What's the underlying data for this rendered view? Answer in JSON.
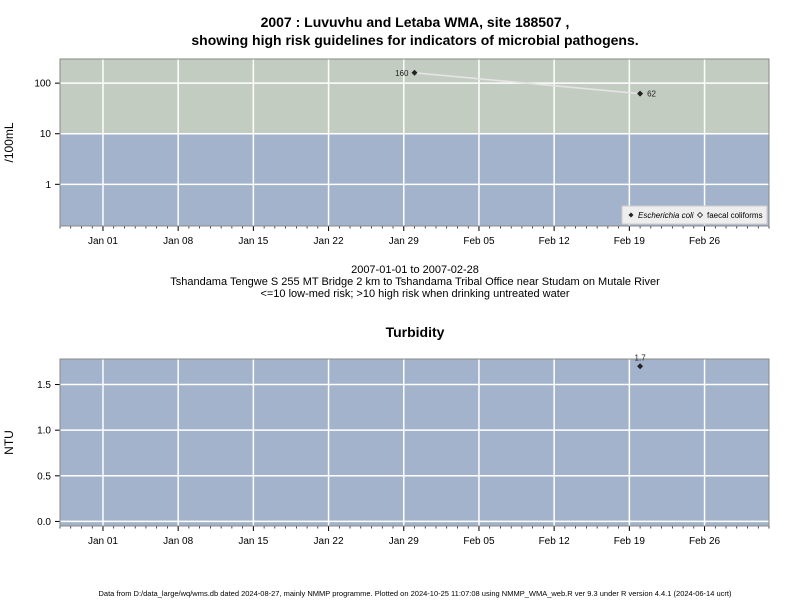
{
  "titles": {
    "main_line1": "2007 : Luvuvhu and Letaba WMA, site 188507 ,",
    "main_line2": "showing high risk guidelines for indicators of microbial pathogens.",
    "date_range": "2007-01-01 to 2007-02-28",
    "site_description": "Tshandama Tengwe S 255 MT Bridge 2 km to Tshandama Tribal Office near Studam on Mutale River",
    "risk_note": "<=10 low-med risk; >10 high risk when drinking untreated water",
    "turbidity_title": "Turbidity",
    "footer": "Data from D:/data_large/wq/wms.db dated 2024-08-27, mainly NMMP programme. Plotted on 2024-10-25 11:07:08 using NMMP_WMA_web.R ver 9.3 under R version 4.4.1 (2024-06-14 ucrt)"
  },
  "chart_data": [
    {
      "type": "line",
      "scale": "log",
      "ylabel": "/100mL",
      "xlim": [
        "2006-12-28",
        "2007-03-04"
      ],
      "ylim": [
        0.15,
        300
      ],
      "yticks": [
        1,
        10,
        100
      ],
      "ytick_labels": [
        "1",
        "10",
        "100"
      ],
      "xticks": [
        "2007-01-01",
        "2007-01-08",
        "2007-01-15",
        "2007-01-22",
        "2007-01-29",
        "2007-02-05",
        "2007-02-12",
        "2007-02-19",
        "2007-02-26"
      ],
      "xtick_labels": [
        "Jan 01",
        "Jan 08",
        "Jan 15",
        "Jan 22",
        "Jan 29",
        "Feb 05",
        "Feb 12",
        "Feb 19",
        "Feb 26"
      ],
      "guideline": {
        "threshold": 10,
        "below_color": "#a2b3cb",
        "above_color": "#c3ccc0"
      },
      "series": [
        {
          "name": "Escherichia coli",
          "marker": "filled-diamond",
          "color": "#222222",
          "line_color": "#e4e4e4",
          "x": [
            "2007-01-30",
            "2007-02-20"
          ],
          "y": [
            160,
            62
          ],
          "labels": [
            "160",
            "62"
          ]
        }
      ],
      "legend": {
        "position": "bottom-right",
        "entries": [
          "Escherichia coli",
          "faecal coliforms"
        ],
        "markers": [
          "filled-diamond",
          "open-diamond"
        ]
      },
      "grid": true
    },
    {
      "type": "scatter",
      "scale": "linear",
      "title": "Turbidity",
      "ylabel": "NTU",
      "xlim": [
        "2006-12-28",
        "2007-03-04"
      ],
      "ylim": [
        -0.05,
        1.78
      ],
      "yticks": [
        0,
        0.5,
        1,
        1.5
      ],
      "ytick_labels": [
        "0.0",
        "0.5",
        "1.0",
        "1.5"
      ],
      "xticks": [
        "2007-01-01",
        "2007-01-08",
        "2007-01-15",
        "2007-01-22",
        "2007-01-29",
        "2007-02-05",
        "2007-02-12",
        "2007-02-19",
        "2007-02-26"
      ],
      "xtick_labels": [
        "Jan 01",
        "Jan 08",
        "Jan 15",
        "Jan 22",
        "Jan 29",
        "Feb 05",
        "Feb 12",
        "Feb 19",
        "Feb 26"
      ],
      "background": "#a2b3cb",
      "series": [
        {
          "name": "Turbidity",
          "marker": "filled-diamond",
          "color": "#222222",
          "x": [
            "2007-02-20"
          ],
          "y": [
            1.7
          ],
          "labels": [
            "1.7"
          ]
        }
      ],
      "grid": true
    }
  ]
}
